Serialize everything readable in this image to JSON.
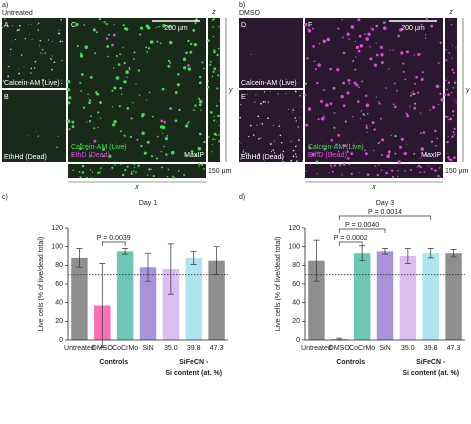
{
  "figure": {
    "panels": [
      {
        "letter": "a)",
        "condition": "Untreated",
        "subpanels": [
          {
            "letter": "A",
            "label": "Calcein-AM (Live)"
          },
          {
            "letter": "B",
            "label": "EthHd (Dead)"
          }
        ],
        "main": {
          "letter": "C",
          "scale": "200 µm",
          "live": "Calcein-AM (Live)",
          "dead": "EthD (Dead)",
          "mode": "MaxIP"
        },
        "axes": [
          "z",
          "y",
          "x"
        ],
        "depth": "150 µm"
      },
      {
        "letter": "b)",
        "condition": "DMSO",
        "subpanels": [
          {
            "letter": "D",
            "label": "Calcein-AM (Live)"
          },
          {
            "letter": "E",
            "label": "EthHd (Dead)"
          }
        ],
        "main": {
          "letter": "F",
          "scale": "200 µm",
          "live": "Calcein-AM (Live)",
          "dead": "EthD (Dead)",
          "mode": "MaxIP"
        },
        "axes": [
          "z",
          "y",
          "x"
        ],
        "depth": "150 µm"
      }
    ]
  },
  "chart_data": [
    {
      "type": "bar",
      "letter": "c)",
      "title": "Day 1",
      "y_label": "Live cells (% of live/dead total)",
      "categories": [
        "Untreated",
        "DMSO",
        "CoCrMo",
        "SiN",
        "35.0",
        "39.8",
        "47.3"
      ],
      "values": [
        88,
        37,
        95,
        78,
        76,
        88,
        85
      ],
      "errors": [
        10,
        45,
        3,
        15,
        27,
        7,
        15
      ],
      "colors": [
        "#8f8f8f",
        "#ff6fb5",
        "#6cc7b4",
        "#a993dc",
        "#dcbdf2",
        "#aee3f2",
        "#8f8f8f"
      ],
      "ylim": [
        0,
        120
      ],
      "yticks": [
        0,
        20,
        40,
        60,
        80,
        100,
        120
      ],
      "reference_line": 70,
      "annotations": [
        "P = 0.0039"
      ],
      "groups": [
        {
          "lines": [
            "Controls"
          ]
        },
        {
          "lines": [
            "SiFeCN -",
            "Si content (at. %)"
          ]
        }
      ]
    },
    {
      "type": "bar",
      "letter": "d)",
      "title": "Day 3",
      "y_label": "Live cells (% of live/dead total)",
      "categories": [
        "Untreated",
        "DMSO",
        "CoCrMo",
        "SiN",
        "35.0",
        "39.8",
        "47.3"
      ],
      "values": [
        85,
        1,
        93,
        95,
        90,
        93,
        93
      ],
      "errors": [
        22,
        1,
        8,
        3,
        8,
        5,
        4
      ],
      "colors": [
        "#8f8f8f",
        "#ff6fb5",
        "#6cc7b4",
        "#a993dc",
        "#dcbdf2",
        "#aee3f2",
        "#8f8f8f"
      ],
      "ylim": [
        0,
        120
      ],
      "yticks": [
        0,
        20,
        40,
        60,
        80,
        100,
        120
      ],
      "reference_line": 70,
      "annotations": [
        "P = 0.0002",
        "P = 0.0040",
        "P = 0.0014"
      ],
      "groups": [
        {
          "lines": [
            "Controls"
          ]
        },
        {
          "lines": [
            "SiFeCN -",
            "Si content (at. %)"
          ]
        }
      ]
    }
  ]
}
